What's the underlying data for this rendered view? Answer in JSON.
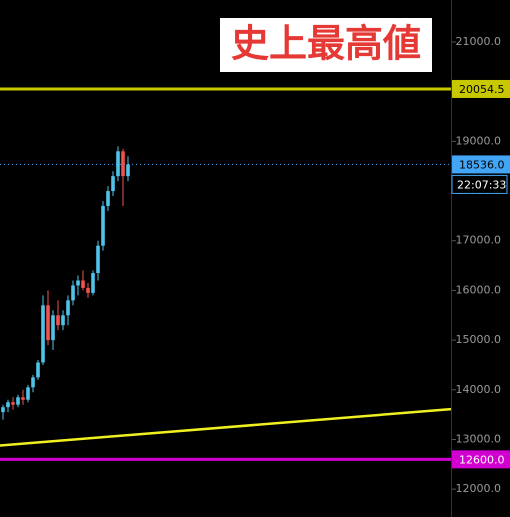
{
  "chart_data": {
    "type": "candlestick",
    "annotation": "史上最高値",
    "open": [
      13550,
      13650,
      13750,
      13700,
      13850,
      13800,
      14050,
      14250,
      14550,
      15700,
      15000,
      15500,
      15300,
      15500,
      15800,
      16100,
      16200,
      16050,
      15950,
      16350,
      16900,
      17700,
      18000,
      18300,
      18800,
      18300
    ],
    "high": [
      13700,
      13800,
      13850,
      13900,
      14000,
      14100,
      14300,
      14600,
      15900,
      16000,
      15600,
      15800,
      15600,
      15900,
      16200,
      16300,
      16400,
      16150,
      16400,
      17000,
      17800,
      18100,
      18400,
      18900,
      18850,
      18700
    ],
    "low": [
      13400,
      13550,
      13600,
      13650,
      13700,
      13750,
      13950,
      14200,
      14500,
      14900,
      14800,
      15200,
      15200,
      15300,
      15700,
      15900,
      16000,
      15850,
      15900,
      16200,
      16800,
      17600,
      17900,
      18200,
      17700,
      18200
    ],
    "close": [
      13650,
      13750,
      13700,
      13850,
      13800,
      14050,
      14250,
      14550,
      15700,
      15000,
      15500,
      15300,
      15500,
      15800,
      16100,
      16200,
      16050,
      15950,
      16350,
      16900,
      17700,
      18000,
      18300,
      18800,
      18300,
      18536
    ],
    "up_color": "#4fc3e8",
    "down_color": "#ef5350",
    "ylim": [
      11440,
      21845
    ],
    "yticks": [
      {
        "value": 21000,
        "label": "21000.0"
      },
      {
        "value": 20000,
        "label": "20000.0"
      },
      {
        "value": 19000,
        "label": "19000.0"
      },
      {
        "value": 18000,
        "label": "18000.0"
      },
      {
        "value": 17000,
        "label": "17000.0"
      },
      {
        "value": 16000,
        "label": "16000.0"
      },
      {
        "value": 15000,
        "label": "15000.0"
      },
      {
        "value": 14000,
        "label": "14000.0"
      },
      {
        "value": 13000,
        "label": "13000.0"
      },
      {
        "value": 12000,
        "label": "12000.0"
      }
    ],
    "horizontal_lines": [
      {
        "value": 20054.5,
        "color": "#c8c800",
        "text_color": "#000000"
      },
      {
        "value": 12600,
        "label": "12600.0",
        "color": "#d100d1",
        "text_color": "#ffffff"
      }
    ],
    "trend_line": {
      "start": 12880,
      "end": 13610,
      "color": "#f0f020"
    },
    "last_price": {
      "value": 18536,
      "label": "18536.0",
      "color": "#42a5f5"
    },
    "countdown": "22:07:33"
  }
}
